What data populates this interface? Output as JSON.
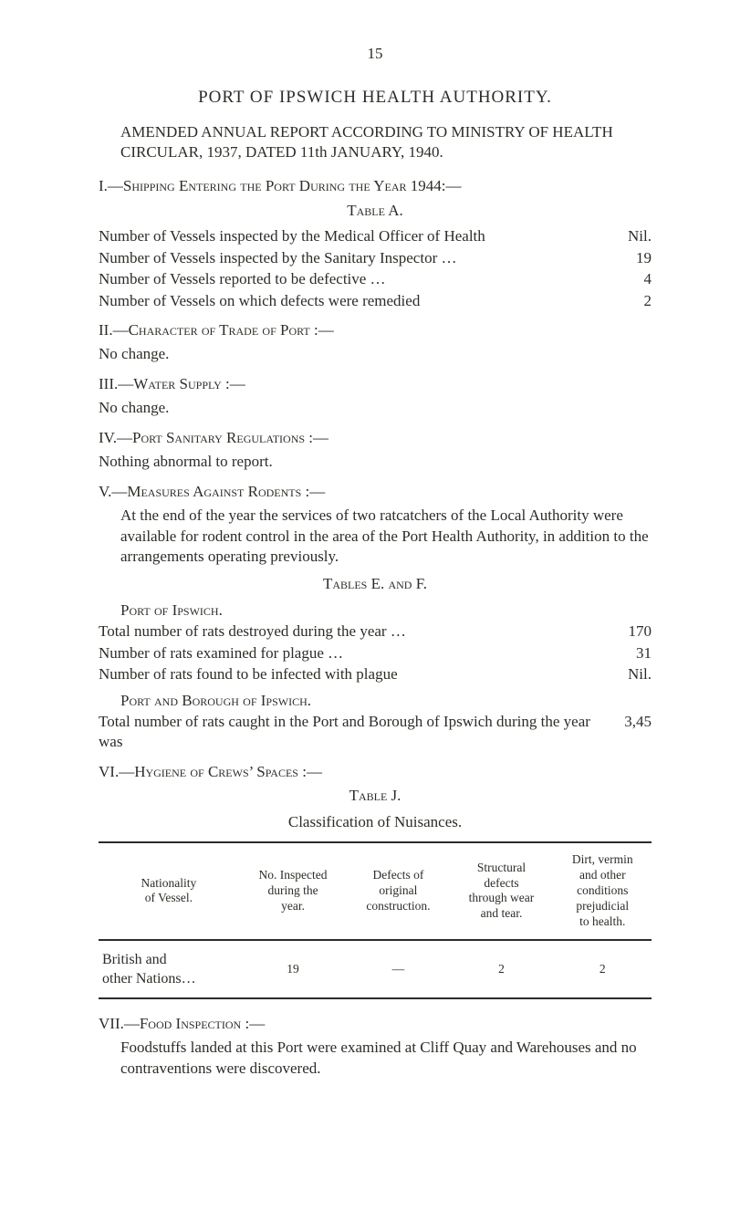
{
  "page_number": "15",
  "title": "PORT  OF  IPSWICH  HEALTH  AUTHORITY.",
  "subtitle": "AMENDED ANNUAL REPORT ACCORDING TO MINISTRY OF HEALTH CIRCULAR, 1937, DATED 11th JANUARY, 1940.",
  "section1": {
    "heading": "I.—Shipping Entering the Port During the Year 1944:—",
    "table_label": "Table A.",
    "rows": [
      {
        "label": "Number of Vessels inspected by the Medical Officer of Health",
        "value": "Nil."
      },
      {
        "label": "Number of Vessels inspected by the Sanitary Inspector …",
        "value": "19"
      },
      {
        "label": "Number of Vessels reported to be defective …",
        "value": "4"
      },
      {
        "label": "Number of Vessels on which defects were remedied",
        "value": "2"
      }
    ]
  },
  "section2": {
    "heading": "II.—Character of Trade of Port :—",
    "body": "No change."
  },
  "section3": {
    "heading": "III.—Water Supply :—",
    "body": "No change."
  },
  "section4": {
    "heading": "IV.—Port Sanitary Regulations :—",
    "body": "Nothing abnormal to report."
  },
  "section5": {
    "heading": "V.—Measures Against Rodents :—",
    "body": "At the end of the year the services of two ratcatchers of the Local Authority were available for rodent control in the area of the Port Health Authority, in addition to the arrangements operating previously.",
    "tables_label": "Tables E. and F.",
    "port_ipswich_label": "Port of Ipswich.",
    "rows_a": [
      {
        "label": "Total number of rats destroyed during the year …",
        "value": "170"
      },
      {
        "label": "Number of rats examined for plague …",
        "value": "31"
      },
      {
        "label": "Number of rats found to be infected with plague",
        "value": "Nil."
      }
    ],
    "port_borough_label": "Port and Borough of Ipswich.",
    "rows_b": [
      {
        "label": "Total number of rats caught in the Port and Borough of Ipswich during the year was",
        "value": "3,45"
      }
    ]
  },
  "section6": {
    "heading": "VI.—Hygiene of Crews’ Spaces :—",
    "table_label": "Table J.",
    "subcaption": "Classification of Nuisances.",
    "columns": [
      "Nationality\nof Vessel.",
      "No. Inspected\nduring the\nyear.",
      "Defects of\noriginal\nconstruction.",
      "Structural\ndefects\nthrough wear\nand tear.",
      "Dirt, vermin\nand other\nconditions\nprejudicial\nto health."
    ],
    "row": {
      "c0": "British and\nother Nations…",
      "c1": "19",
      "c2": "—",
      "c3": "2",
      "c4": "2"
    }
  },
  "section7": {
    "heading": "VII.—Food Inspection :—",
    "body": "Foodstuffs landed at this Port were examined at Cliff Quay and Warehouses and no contraventions were discovered."
  }
}
